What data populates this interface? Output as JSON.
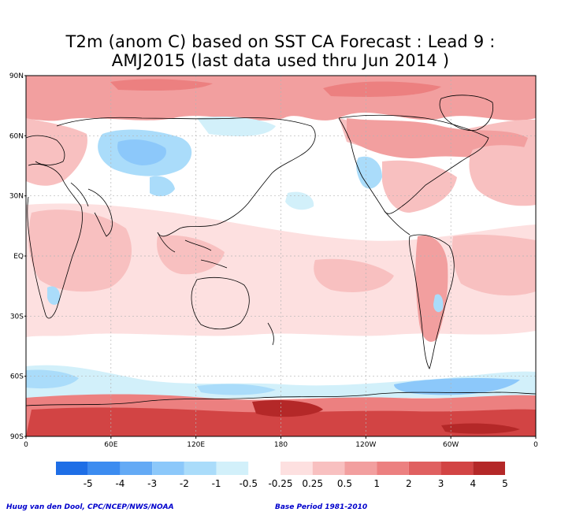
{
  "title_line1": "T2m (anom C) based on SST CA Forecast : Lead 9 :",
  "title_line2": "AMJ2015 (last data used thru Jun 2014 )",
  "lat_labels": [
    "90N",
    "60N",
    "30N",
    "EQ",
    "30S",
    "60S",
    "90S"
  ],
  "lon_labels": [
    "0",
    "60E",
    "120E",
    "180",
    "120W",
    "60W",
    "0"
  ],
  "colorbar": {
    "colors": [
      "#1e6ee6",
      "#3c8cf0",
      "#64aaf5",
      "#8cc8fa",
      "#aadcfa",
      "#d2f0fa",
      "#ffffff",
      "#fde0e0",
      "#f8c0c0",
      "#f29f9f",
      "#ec8080",
      "#e06060",
      "#d24444",
      "#b42828"
    ],
    "labels": [
      "-5",
      "-4",
      "-3",
      "-2",
      "-1",
      "-0.5",
      "-0.25",
      "0.25",
      "0.5",
      "1",
      "2",
      "3",
      "4",
      "5"
    ]
  },
  "credit_left": "Huug van den Dool, CPC/NCEP/NWS/NOAA",
  "credit_right": "Base Period 1981-2010"
}
